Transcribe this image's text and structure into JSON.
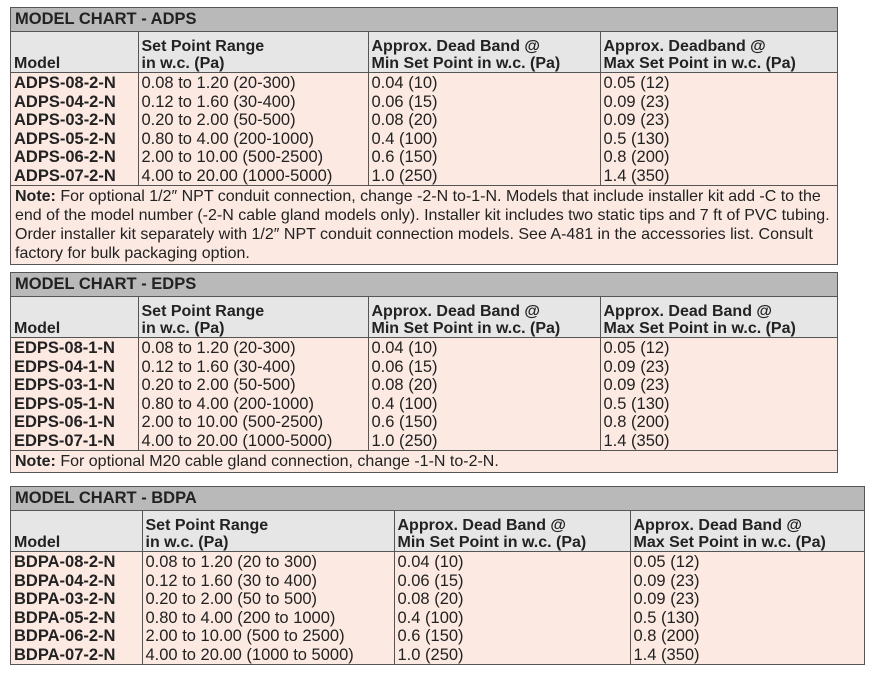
{
  "charts": [
    {
      "title": "MODEL CHART - ADPS",
      "headers": [
        [
          "",
          "Model"
        ],
        [
          "Set Point Range",
          "in w.c. (Pa)"
        ],
        [
          "Approx. Dead Band @",
          "Min Set Point in w.c. (Pa)"
        ],
        [
          "Approx. Deadband @",
          "Max Set Point in w.c. (Pa)"
        ]
      ],
      "rows": [
        [
          "ADPS-08-2-N",
          "0.08 to 1.20 (20-300)",
          "0.04 (10)",
          "0.05 (12)"
        ],
        [
          "ADPS-04-2-N",
          "0.12 to 1.60 (30-400)",
          "0.06 (15)",
          "0.09 (23)"
        ],
        [
          "ADPS-03-2-N",
          "0.20 to 2.00 (50-500)",
          "0.08 (20)",
          "0.09 (23)"
        ],
        [
          "ADPS-05-2-N",
          "0.80 to 4.00 (200-1000)",
          "0.4 (100)",
          "0.5 (130)"
        ],
        [
          "ADPS-06-2-N",
          "2.00 to 10.00 (500-2500)",
          "0.6 (150)",
          "0.8 (200)"
        ],
        [
          "ADPS-07-2-N",
          "4.00 to 20.00 (1000-5000)",
          "1.0 (250)",
          "1.4 (350)"
        ]
      ],
      "note_label": "Note:",
      "note": " For optional 1/2″ NPT conduit connection, change -2-N to-1-N. Models that include installer kit add -C to the end of the model number (-2-N cable gland models only). Installer kit includes two static tips and 7 ft of PVC tubing. Order installer kit separately with 1/2″ NPT conduit connection models. See A-481 in the accessories list. Consult factory for bulk packaging option."
    },
    {
      "title": "MODEL CHART - EDPS",
      "headers": [
        [
          "",
          "Model"
        ],
        [
          "Set Point Range",
          "in w.c. (Pa)"
        ],
        [
          "Approx. Dead Band @",
          "Min Set Point in w.c. (Pa)"
        ],
        [
          "Approx. Dead Band @",
          "Max Set Point in w.c. (Pa)"
        ]
      ],
      "rows": [
        [
          "EDPS-08-1-N",
          "0.08 to 1.20 (20-300)",
          "0.04 (10)",
          "0.05 (12)"
        ],
        [
          "EDPS-04-1-N",
          "0.12 to 1.60 (30-400)",
          "0.06 (15)",
          "0.09 (23)"
        ],
        [
          "EDPS-03-1-N",
          "0.20 to 2.00 (50-500)",
          "0.08 (20)",
          "0.09 (23)"
        ],
        [
          "EDPS-05-1-N",
          "0.80 to 4.00 (200-1000)",
          "0.4 (100)",
          "0.5 (130)"
        ],
        [
          "EDPS-06-1-N",
          "2.00 to 10.00 (500-2500)",
          "0.6 (150)",
          "0.8 (200)"
        ],
        [
          "EDPS-07-1-N",
          "4.00 to 20.00 (1000-5000)",
          "1.0 (250)",
          "1.4 (350)"
        ]
      ],
      "note_label": "Note:",
      "note": " For optional M20 cable gland connection, change -1-N to-2-N."
    },
    {
      "title": "MODEL CHART - BDPA",
      "headers": [
        [
          "",
          "Model"
        ],
        [
          "Set Point Range",
          "in w.c. (Pa)"
        ],
        [
          "Approx. Dead Band @",
          "Min Set Point in w.c. (Pa)"
        ],
        [
          "Approx. Dead Band @",
          "Max Set Point in w.c. (Pa)"
        ]
      ],
      "rows": [
        [
          "BDPA-08-2-N",
          "0.08 to 1.20 (20 to 300)",
          "0.04 (10)",
          "0.05 (12)"
        ],
        [
          "BDPA-04-2-N",
          "0.12 to 1.60 (30 to 400)",
          "0.06 (15)",
          "0.09 (23)"
        ],
        [
          "BDPA-03-2-N",
          "0.20 to 2.00 (50 to 500)",
          "0.08 (20)",
          "0.09 (23)"
        ],
        [
          "BDPA-05-2-N",
          "0.80 to 4.00 (200 to 1000)",
          "0.4 (100)",
          "0.5 (130)"
        ],
        [
          "BDPA-06-2-N",
          "2.00 to 10.00 (500 to 2500)",
          "0.6 (150)",
          "0.8 (200)"
        ],
        [
          "BDPA-07-2-N",
          "4.00 to 20.00 (1000 to 5000)",
          "1.0 (250)",
          "1.4 (350)"
        ]
      ]
    }
  ]
}
